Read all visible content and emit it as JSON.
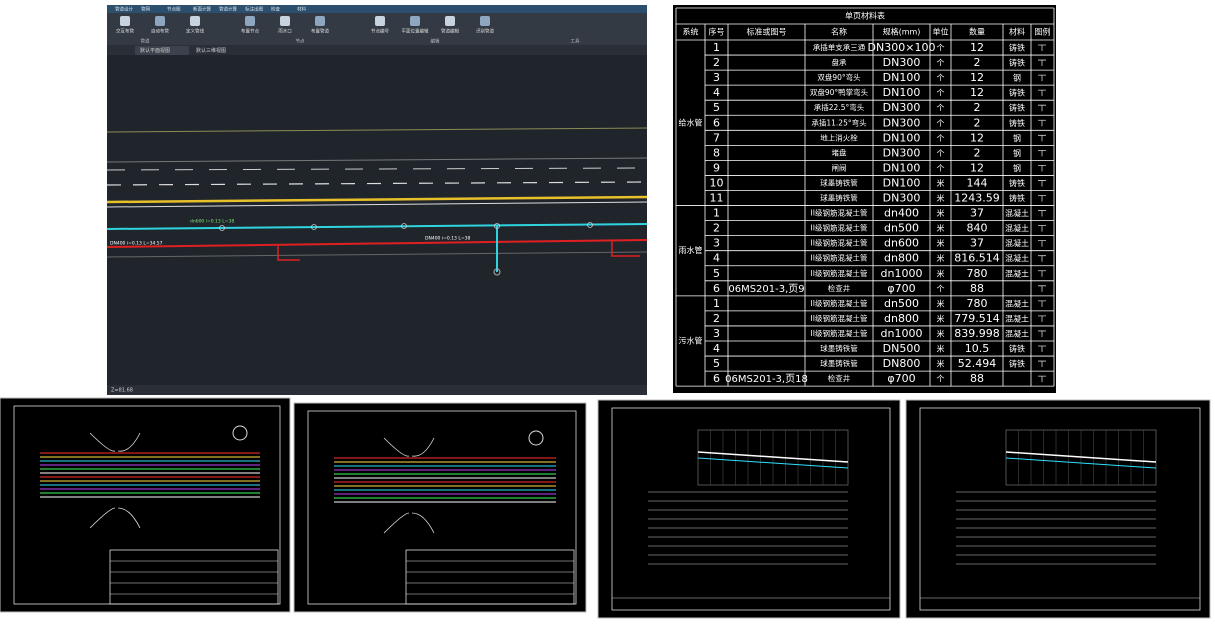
{
  "cad": {
    "tabs": [
      "管道设计",
      "管网",
      "节点图",
      "断面计算",
      "管道计算",
      "标注出图",
      "检查",
      "材料"
    ],
    "tools": [
      "交互布管",
      "自动布管",
      "定义管线",
      "布置节点",
      "雨水口",
      "布置管道",
      "节点编号",
      "平面位置编辑",
      "管道编辑",
      "识别管道"
    ],
    "groups": [
      "管道",
      "节点",
      "编辑",
      "工具"
    ],
    "view_tabs": [
      "默认平面视图",
      "默认三维视图"
    ],
    "pipe_labels": [
      "DN400 i=0.13 L=34.57",
      "dn600 i=0.13 L=38",
      "DN400 i=0.13 L=38"
    ],
    "status": "Z=81.68"
  },
  "table": {
    "title": "单页材料表",
    "headers": [
      "系统",
      "序号",
      "标准或图号",
      "名称",
      "规格(mm)",
      "单位",
      "数量",
      "材料",
      "图例"
    ],
    "groups": [
      {
        "system": "给水管",
        "rows": [
          {
            "no": "1",
            "name": "承插单支承三通",
            "spec": "DN300×100",
            "unit": "个",
            "qty": 12,
            "material": "铸铁"
          },
          {
            "no": "2",
            "name": "盘承",
            "spec": "DN300",
            "unit": "个",
            "qty": 2,
            "material": "铸铁"
          },
          {
            "no": "3",
            "name": "双盘90°弯头",
            "spec": "DN100",
            "unit": "个",
            "qty": 12,
            "material": "钢"
          },
          {
            "no": "4",
            "name": "双盘90°鸭掌弯头",
            "spec": "DN100",
            "unit": "个",
            "qty": 12,
            "material": "铸铁"
          },
          {
            "no": "5",
            "name": "承插22.5°弯头",
            "spec": "DN300",
            "unit": "个",
            "qty": 2,
            "material": "铸铁"
          },
          {
            "no": "6",
            "name": "承插11.25°弯头",
            "spec": "DN300",
            "unit": "个",
            "qty": 2,
            "material": "铸铁"
          },
          {
            "no": "7",
            "name": "地上消火栓",
            "spec": "DN100",
            "unit": "个",
            "qty": 12,
            "material": "钢"
          },
          {
            "no": "8",
            "name": "堵盘",
            "spec": "DN300",
            "unit": "个",
            "qty": 2,
            "material": "钢"
          },
          {
            "no": "9",
            "name": "闸阀",
            "spec": "DN100",
            "unit": "个",
            "qty": 12,
            "material": "钢"
          },
          {
            "no": "10",
            "name": "球墨铸铁管",
            "spec": "DN100",
            "unit": "米",
            "qty": 144,
            "material": "铸铁"
          },
          {
            "no": "11",
            "name": "球墨铸铁管",
            "spec": "DN300",
            "unit": "米",
            "qty": 1243.59,
            "material": "铸铁"
          }
        ]
      },
      {
        "system": "雨水管",
        "rows": [
          {
            "no": "1",
            "name": "II级钢筋混凝土管",
            "spec": "dn400",
            "unit": "米",
            "qty": 37,
            "material": "混凝土"
          },
          {
            "no": "2",
            "name": "II级钢筋混凝土管",
            "spec": "dn500",
            "unit": "米",
            "qty": 840,
            "material": "混凝土"
          },
          {
            "no": "3",
            "name": "II级钢筋混凝土管",
            "spec": "dn600",
            "unit": "米",
            "qty": 37,
            "material": "混凝土"
          },
          {
            "no": "4",
            "name": "II级钢筋混凝土管",
            "spec": "dn800",
            "unit": "米",
            "qty": 816.514,
            "material": "混凝土"
          },
          {
            "no": "5",
            "name": "II级钢筋混凝土管",
            "spec": "dn1000",
            "unit": "米",
            "qty": 780,
            "material": "混凝土"
          },
          {
            "no": "6",
            "std": "06MS201-3,页9",
            "name": "检查井",
            "spec": "φ700",
            "unit": "个",
            "qty": 88
          }
        ]
      },
      {
        "system": "污水管",
        "rows": [
          {
            "no": "1",
            "name": "II级钢筋混凝土管",
            "spec": "dn500",
            "unit": "米",
            "qty": 780,
            "material": "混凝土"
          },
          {
            "no": "2",
            "name": "II级钢筋混凝土管",
            "spec": "dn800",
            "unit": "米",
            "qty": 779.514,
            "material": "混凝土"
          },
          {
            "no": "3",
            "name": "II级钢筋混凝土管",
            "spec": "dn1000",
            "unit": "米",
            "qty": 839.998,
            "material": "混凝土"
          },
          {
            "no": "4",
            "name": "球墨铸铁管",
            "spec": "DN500",
            "unit": "米",
            "qty": 10.5,
            "material": "铸铁"
          },
          {
            "no": "5",
            "name": "球墨铸铁管",
            "spec": "DN800",
            "unit": "米",
            "qty": 52.494,
            "material": "铸铁"
          },
          {
            "no": "6",
            "std": "06MS201-3,页18",
            "name": "检查井",
            "spec": "φ700",
            "unit": "个",
            "qty": 88
          }
        ]
      }
    ]
  }
}
